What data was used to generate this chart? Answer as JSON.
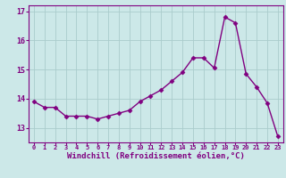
{
  "x": [
    0,
    1,
    2,
    3,
    4,
    5,
    6,
    7,
    8,
    9,
    10,
    11,
    12,
    13,
    14,
    15,
    16,
    17,
    18,
    19,
    20,
    21,
    22,
    23
  ],
  "y": [
    13.9,
    13.7,
    13.7,
    13.4,
    13.4,
    13.4,
    13.3,
    13.4,
    13.5,
    13.6,
    13.9,
    14.1,
    14.3,
    14.6,
    14.9,
    15.4,
    15.4,
    15.05,
    16.8,
    16.6,
    14.85,
    14.4,
    13.85,
    12.7
  ],
  "line_color": "#800080",
  "marker": "D",
  "marker_size": 2.5,
  "linewidth": 1.0,
  "bg_color": "#cce8e8",
  "grid_color": "#aacccc",
  "xlabel": "Windchill (Refroidissement éolien,°C)",
  "tick_color": "#800080",
  "ylim": [
    12.5,
    17.2
  ],
  "xlim": [
    -0.5,
    23.5
  ],
  "yticks": [
    13,
    14,
    15,
    16,
    17
  ],
  "xtick_labels": [
    "0",
    "1",
    "2",
    "3",
    "4",
    "5",
    "6",
    "7",
    "8",
    "9",
    "10",
    "11",
    "12",
    "13",
    "14",
    "15",
    "16",
    "17",
    "18",
    "19",
    "20",
    "21",
    "22",
    "23"
  ]
}
